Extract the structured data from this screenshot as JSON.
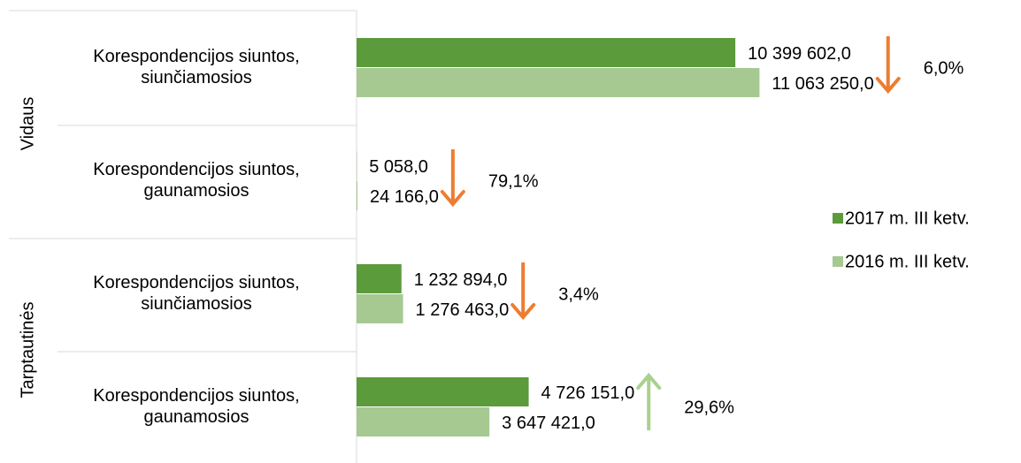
{
  "chart_data": {
    "type": "bar",
    "orientation": "horizontal",
    "groups": [
      {
        "name": "Vidaus",
        "categories": [
          0,
          1
        ]
      },
      {
        "name": "Tarptautinės",
        "categories": [
          2,
          3
        ]
      }
    ],
    "categories": [
      "Korespondencijos siuntos, siunčiamosios",
      "Korespondencijos siuntos, gaunamosios",
      "Korespondencijos siuntos, siunčiamosios",
      "Korespondencijos siuntos, gaunamosios"
    ],
    "series": [
      {
        "name": "2017 m. III ketv.",
        "color": "#5b9b3b",
        "values": [
          10399602,
          5058,
          1232894,
          4726151
        ],
        "value_labels": [
          "10 399 602,0",
          "5 058,0",
          "1 232 894,0",
          "4 726 151,0"
        ]
      },
      {
        "name": "2016 m. III ketv.",
        "color": "#a5c991",
        "values": [
          11063250,
          24166,
          1276463,
          3647421
        ],
        "value_labels": [
          "11 063 250,0",
          "24 166,0",
          "1 276 463,0",
          "3 647 421,0"
        ]
      }
    ],
    "annotations": [
      {
        "text": "6,0%",
        "direction": "down",
        "color": "#ed7d31"
      },
      {
        "text": "79,1%",
        "direction": "down",
        "color": "#ed7d31"
      },
      {
        "text": "3,4%",
        "direction": "down",
        "color": "#ed7d31"
      },
      {
        "text": "29,6%",
        "direction": "up",
        "color": "#a9d18e"
      }
    ],
    "xlim": [
      0,
      18000000
    ],
    "legend": "right"
  }
}
